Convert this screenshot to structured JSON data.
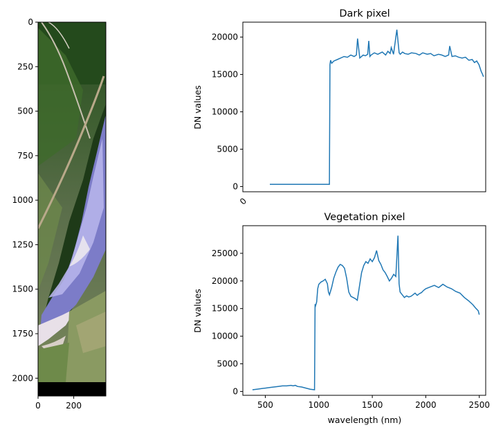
{
  "chart_data": [
    {
      "type": "image",
      "description_labels": true,
      "x_ticks": [
        "0",
        "200"
      ],
      "y_ticks": [
        "0",
        "250",
        "500",
        "750",
        "1000",
        "1250",
        "1500",
        "1750",
        "2000"
      ],
      "xlim": [
        0,
        380
      ],
      "ylim": [
        2100,
        0
      ]
    },
    {
      "type": "line",
      "title": "Dark pixel",
      "xlabel": "",
      "ylabel": "DN values",
      "x_ticks": [
        "0"
      ],
      "y_ticks": [
        "0",
        "5000",
        "10000",
        "15000",
        "20000"
      ],
      "ylim": [
        -700,
        22000
      ],
      "xlim": [
        360,
        2520
      ],
      "series": [
        {
          "color": "#1f77b4",
          "x": [
            600,
            650,
            700,
            750,
            800,
            850,
            900,
            950,
            1000,
            1050,
            1100,
            1130,
            1135,
            1140,
            1150,
            1170,
            1200,
            1230,
            1260,
            1290,
            1320,
            1350,
            1370,
            1380,
            1400,
            1430,
            1450,
            1470,
            1480,
            1490,
            1500,
            1530,
            1560,
            1600,
            1630,
            1650,
            1670,
            1680,
            1700,
            1730,
            1750,
            1760,
            1780,
            1800,
            1830,
            1860,
            1900,
            1930,
            1960,
            2000,
            2030,
            2060,
            2100,
            2130,
            2160,
            2190,
            2200,
            2220,
            2250,
            2280,
            2310,
            2340,
            2370,
            2400,
            2420,
            2440,
            2460,
            2480,
            2490,
            2500
          ],
          "y": [
            300,
            300,
            300,
            300,
            300,
            300,
            300,
            300,
            300,
            300,
            300,
            300,
            16300,
            16900,
            16500,
            16800,
            17000,
            17200,
            17400,
            17300,
            17600,
            17400,
            17600,
            19800,
            17200,
            17600,
            17500,
            17700,
            19500,
            17400,
            17600,
            17900,
            17700,
            18000,
            17600,
            18100,
            17800,
            18600,
            17700,
            21000,
            17900,
            17700,
            18000,
            17800,
            17700,
            17900,
            17800,
            17600,
            17900,
            17700,
            17800,
            17500,
            17700,
            17600,
            17400,
            17600,
            18800,
            17400,
            17500,
            17300,
            17200,
            17300,
            16900,
            17000,
            16600,
            16800,
            16300,
            15400,
            15100,
            14700
          ]
        }
      ]
    },
    {
      "type": "line",
      "title": "Vegetation pixel",
      "xlabel": "wavelength (nm)",
      "ylabel": "DN values",
      "x_ticks": [
        "500",
        "1000",
        "1500",
        "2000",
        "2500"
      ],
      "y_ticks": [
        "0",
        "5000",
        "10000",
        "15000",
        "20000",
        "25000"
      ],
      "ylim": [
        -700,
        30000
      ],
      "xlim": [
        290,
        2560
      ],
      "series": [
        {
          "color": "#1f77b4",
          "x": [
            380,
            420,
            460,
            500,
            540,
            580,
            620,
            660,
            700,
            740,
            760,
            780,
            800,
            840,
            880,
            920,
            960,
            965,
            970,
            980,
            990,
            1000,
            1020,
            1040,
            1060,
            1080,
            1090,
            1100,
            1120,
            1140,
            1160,
            1180,
            1200,
            1220,
            1240,
            1260,
            1280,
            1300,
            1320,
            1340,
            1360,
            1380,
            1400,
            1420,
            1440,
            1460,
            1480,
            1500,
            1520,
            1540,
            1560,
            1580,
            1600,
            1620,
            1640,
            1660,
            1680,
            1700,
            1720,
            1740,
            1745,
            1750,
            1760,
            1780,
            1800,
            1820,
            1840,
            1860,
            1880,
            1900,
            1920,
            1940,
            1960,
            1980,
            2000,
            2040,
            2080,
            2120,
            2160,
            2200,
            2240,
            2280,
            2320,
            2360,
            2400,
            2440,
            2470,
            2490,
            2500
          ],
          "y": [
            300,
            400,
            500,
            600,
            700,
            800,
            900,
            1000,
            1000,
            1100,
            1000,
            1100,
            900,
            800,
            600,
            400,
            300,
            15800,
            15500,
            16200,
            18600,
            19400,
            19800,
            20000,
            20300,
            19500,
            18000,
            17500,
            18800,
            20500,
            21600,
            22500,
            23000,
            22800,
            22300,
            20500,
            18000,
            17200,
            17000,
            16800,
            16500,
            19000,
            21500,
            22800,
            23500,
            23200,
            24000,
            23500,
            24200,
            25500,
            23700,
            23000,
            22000,
            21500,
            20800,
            20000,
            20500,
            21200,
            20800,
            28200,
            23800,
            19500,
            18000,
            17500,
            17000,
            17300,
            17100,
            17200,
            17500,
            17800,
            17400,
            17700,
            17900,
            18300,
            18600,
            18900,
            19200,
            18800,
            19400,
            18900,
            18600,
            18100,
            17800,
            17000,
            16400,
            15700,
            15000,
            14600,
            13900
          ]
        }
      ]
    }
  ]
}
